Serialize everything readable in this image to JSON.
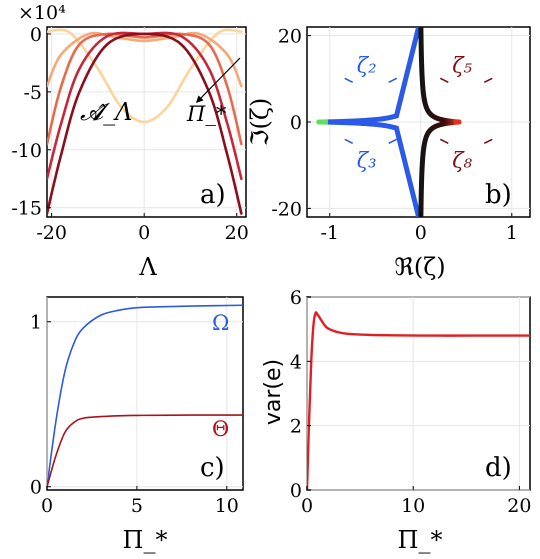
{
  "chart_data": [
    {
      "panel": "a)",
      "type": "line",
      "xlabel": "Λ",
      "ylabel": "",
      "exponent_label": "×10⁴",
      "xlim": [
        -21,
        22
      ],
      "ylim": [
        -15.8,
        0.6
      ],
      "x_ticks": [
        -20,
        0,
        20
      ],
      "x_tick_labels": [
        "-20",
        "0",
        "20"
      ],
      "y_ticks": [
        0,
        -5,
        -10,
        -15
      ],
      "y_tick_labels": [
        "0",
        "-5",
        "-10",
        "-15"
      ],
      "annotations": [
        "𝓐̂_Λ",
        "Π_*"
      ],
      "series": [
        {
          "color": "#fcd39a",
          "values": {
            "x": [
              -21,
              -16,
              -10,
              -5,
              0,
              5,
              10,
              16,
              21
            ],
            "y": [
              0.2,
              0.1,
              -3.0,
              -6.3,
              -7.6,
              -6.3,
              -3.0,
              0.1,
              0.2
            ]
          }
        },
        {
          "color": "#f6a878",
          "values": {
            "x": [
              -21,
              -18,
              -12,
              -6,
              0,
              6,
              12,
              18,
              21
            ],
            "y": [
              -4.5,
              -1.8,
              0.0,
              -0.3,
              -0.6,
              -0.3,
              0.0,
              -1.8,
              -4.5
            ]
          }
        },
        {
          "color": "#e8694c",
          "values": {
            "x": [
              -21,
              -18,
              -14,
              -8,
              0,
              8,
              14,
              18,
              21
            ],
            "y": [
              -9.5,
              -4.6,
              -0.9,
              0.0,
              -0.3,
              0.0,
              -0.9,
              -4.6,
              -9.5
            ]
          }
        },
        {
          "color": "#c6283a",
          "values": {
            "x": [
              -21,
              -18,
              -14,
              -8,
              0,
              8,
              14,
              18,
              21
            ],
            "y": [
              -12.5,
              -7.8,
              -3.0,
              -0.2,
              0.0,
              -0.2,
              -3.0,
              -7.8,
              -12.5
            ]
          }
        },
        {
          "color": "#8a0f1c",
          "values": {
            "x": [
              -21,
              -18,
              -14,
              -8,
              0,
              8,
              14,
              18,
              21
            ],
            "y": [
              -15.5,
              -10.5,
              -5.0,
              -0.9,
              0.0,
              -0.9,
              -5.0,
              -10.5,
              -15.5
            ]
          }
        }
      ]
    },
    {
      "panel": "b)",
      "type": "scatter",
      "xlabel": "ℜ(ζ)",
      "ylabel": "ℑ(ζ)",
      "xlim": [
        -1.25,
        1.2
      ],
      "ylim": [
        -22,
        22
      ],
      "x_ticks": [
        -1,
        0,
        1
      ],
      "x_tick_labels": [
        "-1",
        "0",
        "1"
      ],
      "y_ticks": [
        20,
        0,
        -20
      ],
      "y_tick_labels": [
        "20",
        "0",
        "-20"
      ],
      "labels": [
        "ζ₂",
        "ζ₅",
        "ζ₃",
        "ζ₈"
      ],
      "label_colors": [
        "#2b59e8",
        "#7a0d12",
        "#2b59e8",
        "#7a0d12"
      ],
      "left_branch_color": "#2b59e8",
      "left_branch_tip_color": "#5ee05a",
      "right_branch_color": "#141414",
      "right_branch_tip_color": "#e4321c",
      "left_branch_x_range": [
        -1.12,
        0
      ],
      "right_branch_x_range": [
        0,
        0.42
      ]
    },
    {
      "panel": "c)",
      "type": "line",
      "xlabel": "Π_*",
      "ylabel": "",
      "xlim": [
        0,
        10.9
      ],
      "ylim": [
        -0.02,
        1.15
      ],
      "x_ticks": [
        0,
        5,
        10
      ],
      "x_tick_labels": [
        "0",
        "5",
        "10"
      ],
      "y_ticks": [
        0,
        1
      ],
      "y_tick_labels": [
        "0",
        "1"
      ],
      "series": [
        {
          "name": "Ω",
          "color": "#2b59e8",
          "values": {
            "x": [
              0,
              0.5,
              1,
              1.5,
              2,
              3,
              4,
              5,
              6,
              8,
              10.9
            ],
            "y": [
              0,
              0.4,
              0.7,
              0.87,
              0.96,
              1.04,
              1.07,
              1.085,
              1.09,
              1.095,
              1.1
            ]
          }
        },
        {
          "name": "Θ",
          "color": "#a8131b",
          "values": {
            "x": [
              0,
              0.5,
              1,
              1.5,
              2,
              3,
              4,
              5,
              6,
              8,
              10.9
            ],
            "y": [
              0,
              0.19,
              0.33,
              0.39,
              0.415,
              0.425,
              0.43,
              0.432,
              0.433,
              0.434,
              0.434
            ]
          }
        }
      ]
    },
    {
      "panel": "d)",
      "type": "line",
      "xlabel": "Π_*",
      "ylabel": "var(e)",
      "xlim": [
        0,
        21
      ],
      "ylim": [
        0,
        6
      ],
      "x_ticks": [
        0,
        10,
        20
      ],
      "x_tick_labels": [
        "0",
        "10",
        "20"
      ],
      "y_ticks": [
        0,
        2,
        4,
        6
      ],
      "y_tick_labels": [
        "0",
        "2",
        "4",
        "6"
      ],
      "series": [
        {
          "color": "#e02020",
          "values": {
            "x": [
              0,
              0.2,
              0.4,
              0.6,
              0.8,
              1.0,
              1.3,
              1.6,
              2,
              3,
              4,
              6,
              8,
              12,
              16,
              21
            ],
            "y": [
              0,
              2.2,
              4.0,
              5.1,
              5.5,
              5.45,
              5.3,
              5.15,
              5.02,
              4.9,
              4.85,
              4.82,
              4.81,
              4.8,
              4.8,
              4.8
            ]
          }
        }
      ]
    }
  ]
}
